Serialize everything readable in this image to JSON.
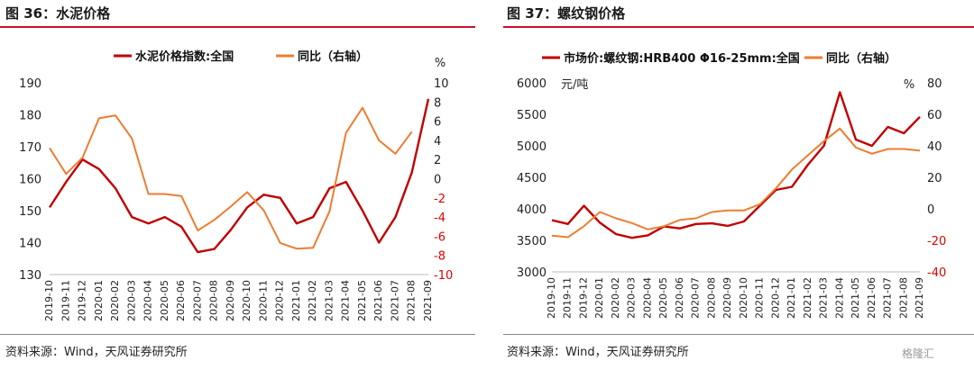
{
  "panels": {
    "left": {
      "title": "图 36：水泥价格",
      "source": "资料来源：Wind，天风证券研究所"
    },
    "right": {
      "title": "图 37：螺纹钢价格",
      "source": "资料来源：Wind，天风证券研究所"
    }
  },
  "watermark": "格隆汇",
  "chart_data": [
    {
      "type": "line",
      "title": "",
      "x": [
        "2019-10",
        "2019-11",
        "2019-12",
        "2020-01",
        "2020-02",
        "2020-03",
        "2020-04",
        "2020-05",
        "2020-06",
        "2020-07",
        "2020-08",
        "2020-09",
        "2020-10",
        "2020-11",
        "2020-12",
        "2021-01",
        "2021-02",
        "2021-03",
        "2021-04",
        "2021-05",
        "2021-06",
        "2021-07",
        "2021-08",
        "2021-09"
      ],
      "y_left_ticks": [
        "130",
        "140",
        "150",
        "160",
        "170",
        "180",
        "190"
      ],
      "ylim_left": [
        130,
        190
      ],
      "y_right_ticks": [
        "-10",
        "-8",
        "-6",
        "-4",
        "-2",
        "0",
        "2",
        "4",
        "6",
        "8",
        "10"
      ],
      "ylim_right": [
        -10,
        10
      ],
      "y_right_unit": "%",
      "series": [
        {
          "name": "水泥价格指数:全国",
          "color": "#c00000",
          "axis": "left",
          "values": [
            151,
            159,
            166,
            163,
            157,
            148,
            146,
            148,
            145,
            137,
            138,
            144,
            151,
            155,
            154,
            146,
            148,
            157,
            159,
            150,
            140,
            148,
            162,
            185
          ]
        },
        {
          "name": "同比（右轴）",
          "color": "#ed7d31",
          "axis": "right",
          "values": [
            3.2,
            0.5,
            2.2,
            6.3,
            6.6,
            4.2,
            -1.6,
            -1.6,
            -1.8,
            -5.4,
            -4.3,
            -2.9,
            -1.4,
            -3.3,
            -6.7,
            -7.3,
            -7.2,
            -3.4,
            4.8,
            7.4,
            4.0,
            2.6,
            4.9,
            null
          ]
        }
      ]
    },
    {
      "type": "line",
      "title": "",
      "x": [
        "2019-10",
        "2019-11",
        "2019-12",
        "2020-01",
        "2020-02",
        "2020-03",
        "2020-04",
        "2020-05",
        "2020-06",
        "2020-07",
        "2020-08",
        "2020-09",
        "2020-10",
        "2020-11",
        "2020-12",
        "2021-01",
        "2021-02",
        "2021-03",
        "2021-04",
        "2021-05",
        "2021-06",
        "2021-07",
        "2021-08",
        "2021-09"
      ],
      "y_left_ticks": [
        "3000",
        "3500",
        "4000",
        "4500",
        "5000",
        "5500",
        "6000"
      ],
      "ylim_left": [
        3000,
        6000
      ],
      "y_left_unit": "元/吨",
      "y_right_ticks": [
        "-40",
        "-20",
        "0",
        "20",
        "40",
        "60",
        "80"
      ],
      "ylim_right": [
        -40,
        80
      ],
      "y_right_unit": "%",
      "series": [
        {
          "name": "市场价:螺纹钢:HRB400 Φ16-25mm:全国",
          "color": "#c00000",
          "axis": "left",
          "values": [
            3820,
            3760,
            4050,
            3780,
            3600,
            3540,
            3580,
            3720,
            3690,
            3760,
            3770,
            3730,
            3800,
            4050,
            4300,
            4350,
            4700,
            5000,
            5850,
            5100,
            5000,
            5300,
            5200,
            5460
          ]
        },
        {
          "name": "同比（右轴）",
          "color": "#ed7d31",
          "axis": "right",
          "values": [
            -17,
            -18,
            -11,
            -2,
            -6,
            -9,
            -13,
            -11,
            -7,
            -6,
            -2,
            -1,
            -1,
            3,
            13,
            25,
            34,
            43,
            51,
            39,
            35,
            38,
            38,
            37
          ]
        }
      ]
    }
  ]
}
